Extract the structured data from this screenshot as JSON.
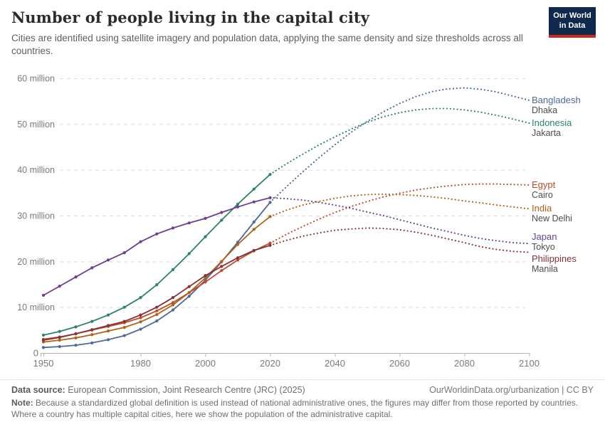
{
  "header": {
    "title": "Number of people living in the capital city",
    "subtitle": "Cities are identified using satellite imagery and population data, applying the same density and size thresholds across all countries.",
    "logo": {
      "line1": "Our World",
      "line2": "in Data",
      "bg_color": "#102A4E",
      "accent_color": "#CE261E"
    }
  },
  "chart_data": {
    "type": "line",
    "title": "Number of people living in the capital city",
    "xlabel": "",
    "ylabel": "",
    "unit": "million people",
    "grid": true,
    "legend_position": "right",
    "xlim": [
      1950,
      2100
    ],
    "ylim": [
      0,
      60
    ],
    "x_ticks": [
      1950,
      1980,
      2000,
      2020,
      2040,
      2060,
      2080,
      2100
    ],
    "y_ticks": [
      {
        "value": 0,
        "label": "0"
      },
      {
        "value": 10,
        "label": "10 million"
      },
      {
        "value": 20,
        "label": "20 million"
      },
      {
        "value": 30,
        "label": "30 million"
      },
      {
        "value": 40,
        "label": "40 million"
      },
      {
        "value": 50,
        "label": "50 million"
      },
      {
        "value": 60,
        "label": "60 million"
      }
    ],
    "projection_split_year": 2020,
    "style_note": "solid line with point markers = historical (1950-2020); dotted line = projection (2020-2100)",
    "series": [
      {
        "country": "Bangladesh",
        "city": "Dhaka",
        "color": "#4C6A9C",
        "years_hist": [
          1950,
          1955,
          1960,
          1965,
          1970,
          1975,
          1980,
          1985,
          1990,
          1995,
          2000,
          2005,
          2010,
          2015,
          2020
        ],
        "values_hist": [
          1.2,
          1.4,
          1.7,
          2.2,
          2.9,
          3.8,
          5.2,
          7.0,
          9.4,
          12.4,
          15.9,
          19.9,
          24.2,
          28.6,
          32.9
        ],
        "years_proj": [
          2020,
          2025,
          2030,
          2035,
          2040,
          2045,
          2050,
          2055,
          2060,
          2065,
          2070,
          2075,
          2080,
          2085,
          2090,
          2095,
          2100
        ],
        "values_proj": [
          32.9,
          36.3,
          39.5,
          42.6,
          45.5,
          48.2,
          50.6,
          52.7,
          54.5,
          56.0,
          57.1,
          57.7,
          57.9,
          57.6,
          57.0,
          56.1,
          55.2
        ]
      },
      {
        "country": "Indonesia",
        "city": "Jakarta",
        "color": "#2C8465",
        "years_hist": [
          1950,
          1955,
          1960,
          1965,
          1970,
          1975,
          1980,
          1985,
          1990,
          1995,
          2000,
          2005,
          2010,
          2015,
          2020
        ],
        "values_hist": [
          3.9,
          4.7,
          5.7,
          6.9,
          8.3,
          10.0,
          12.1,
          14.9,
          18.2,
          21.7,
          25.4,
          29.0,
          32.5,
          35.8,
          39.0
        ],
        "years_proj": [
          2020,
          2025,
          2030,
          2035,
          2040,
          2045,
          2050,
          2055,
          2060,
          2065,
          2070,
          2075,
          2080,
          2085,
          2090,
          2095,
          2100
        ],
        "values_proj": [
          39.0,
          41.3,
          43.4,
          45.4,
          47.2,
          48.9,
          50.4,
          51.6,
          52.5,
          53.1,
          53.4,
          53.4,
          53.1,
          52.6,
          51.9,
          51.1,
          50.2
        ]
      },
      {
        "country": "Egypt",
        "city": "Cairo",
        "color": "#BE4B2C",
        "years_hist": [
          1950,
          1955,
          1960,
          1965,
          1970,
          1975,
          1980,
          1985,
          1990,
          1995,
          2000,
          2005,
          2010,
          2015,
          2020
        ],
        "values_hist": [
          3.0,
          3.5,
          4.2,
          5.0,
          5.8,
          6.6,
          7.7,
          9.2,
          11.0,
          13.2,
          15.5,
          18.0,
          20.3,
          22.3,
          24.0
        ],
        "years_proj": [
          2020,
          2025,
          2030,
          2035,
          2040,
          2045,
          2050,
          2055,
          2060,
          2065,
          2070,
          2075,
          2080,
          2085,
          2090,
          2095,
          2100
        ],
        "values_proj": [
          24.0,
          25.9,
          27.6,
          29.2,
          30.7,
          32.0,
          33.1,
          34.1,
          34.9,
          35.6,
          36.1,
          36.5,
          36.8,
          36.9,
          36.9,
          36.8,
          36.7
        ]
      },
      {
        "country": "India",
        "city": "New Delhi",
        "color": "#B16214",
        "years_hist": [
          1950,
          1955,
          1960,
          1965,
          1970,
          1975,
          1980,
          1985,
          1990,
          1995,
          2000,
          2005,
          2010,
          2015,
          2020
        ],
        "values_hist": [
          2.4,
          2.8,
          3.3,
          4.0,
          4.8,
          5.6,
          6.8,
          8.4,
          10.5,
          13.2,
          16.4,
          20.0,
          23.7,
          27.0,
          29.8
        ],
        "years_proj": [
          2020,
          2025,
          2030,
          2035,
          2040,
          2045,
          2050,
          2055,
          2060,
          2065,
          2070,
          2075,
          2080,
          2085,
          2090,
          2095,
          2100
        ],
        "values_proj": [
          29.8,
          31.2,
          32.3,
          33.1,
          33.8,
          34.3,
          34.6,
          34.7,
          34.6,
          34.4,
          34.1,
          33.7,
          33.2,
          32.8,
          32.3,
          31.9,
          31.5
        ]
      },
      {
        "country": "Japan",
        "city": "Tokyo",
        "color": "#6D3E91",
        "years_hist": [
          1950,
          1955,
          1960,
          1965,
          1970,
          1975,
          1980,
          1985,
          1990,
          1995,
          2000,
          2005,
          2010,
          2015,
          2020
        ],
        "values_hist": [
          12.6,
          14.6,
          16.6,
          18.6,
          20.3,
          21.9,
          24.3,
          26.0,
          27.3,
          28.4,
          29.4,
          30.7,
          31.9,
          33.0,
          33.9
        ],
        "years_proj": [
          2020,
          2025,
          2030,
          2035,
          2040,
          2045,
          2050,
          2055,
          2060,
          2065,
          2070,
          2075,
          2080,
          2085,
          2090,
          2095,
          2100
        ],
        "values_proj": [
          33.9,
          33.7,
          33.4,
          32.9,
          32.3,
          31.6,
          30.8,
          30.0,
          29.1,
          28.2,
          27.3,
          26.5,
          25.7,
          25.0,
          24.5,
          24.1,
          23.9
        ]
      },
      {
        "country": "Philippines",
        "city": "Manila",
        "color": "#883039",
        "years_hist": [
          1950,
          1955,
          1960,
          1965,
          1970,
          1975,
          1980,
          1985,
          1990,
          1995,
          2000,
          2005,
          2010,
          2015,
          2020
        ],
        "values_hist": [
          2.8,
          3.4,
          4.2,
          5.1,
          6.0,
          6.9,
          8.3,
          10.0,
          12.1,
          14.5,
          16.9,
          18.9,
          20.8,
          22.4,
          23.5
        ],
        "years_proj": [
          2020,
          2025,
          2030,
          2035,
          2040,
          2045,
          2050,
          2055,
          2060,
          2065,
          2070,
          2075,
          2080,
          2085,
          2090,
          2095,
          2100
        ],
        "values_proj": [
          23.5,
          24.6,
          25.5,
          26.2,
          26.8,
          27.1,
          27.3,
          27.2,
          26.9,
          26.4,
          25.7,
          24.9,
          24.1,
          23.2,
          22.6,
          22.2,
          22.0
        ]
      }
    ]
  },
  "footer": {
    "source_label": "Data source:",
    "source_text": "European Commission, Joint Research Centre (JRC) (2025)",
    "cite": "OurWorldinData.org/urbanization | CC BY",
    "note_label": "Note:",
    "note_text": "Because a standardized global definition is used instead of national administrative ones, the figures may differ from those reported by countries. Where a country has multiple capital cities, here we show the population of the administrative capital."
  }
}
